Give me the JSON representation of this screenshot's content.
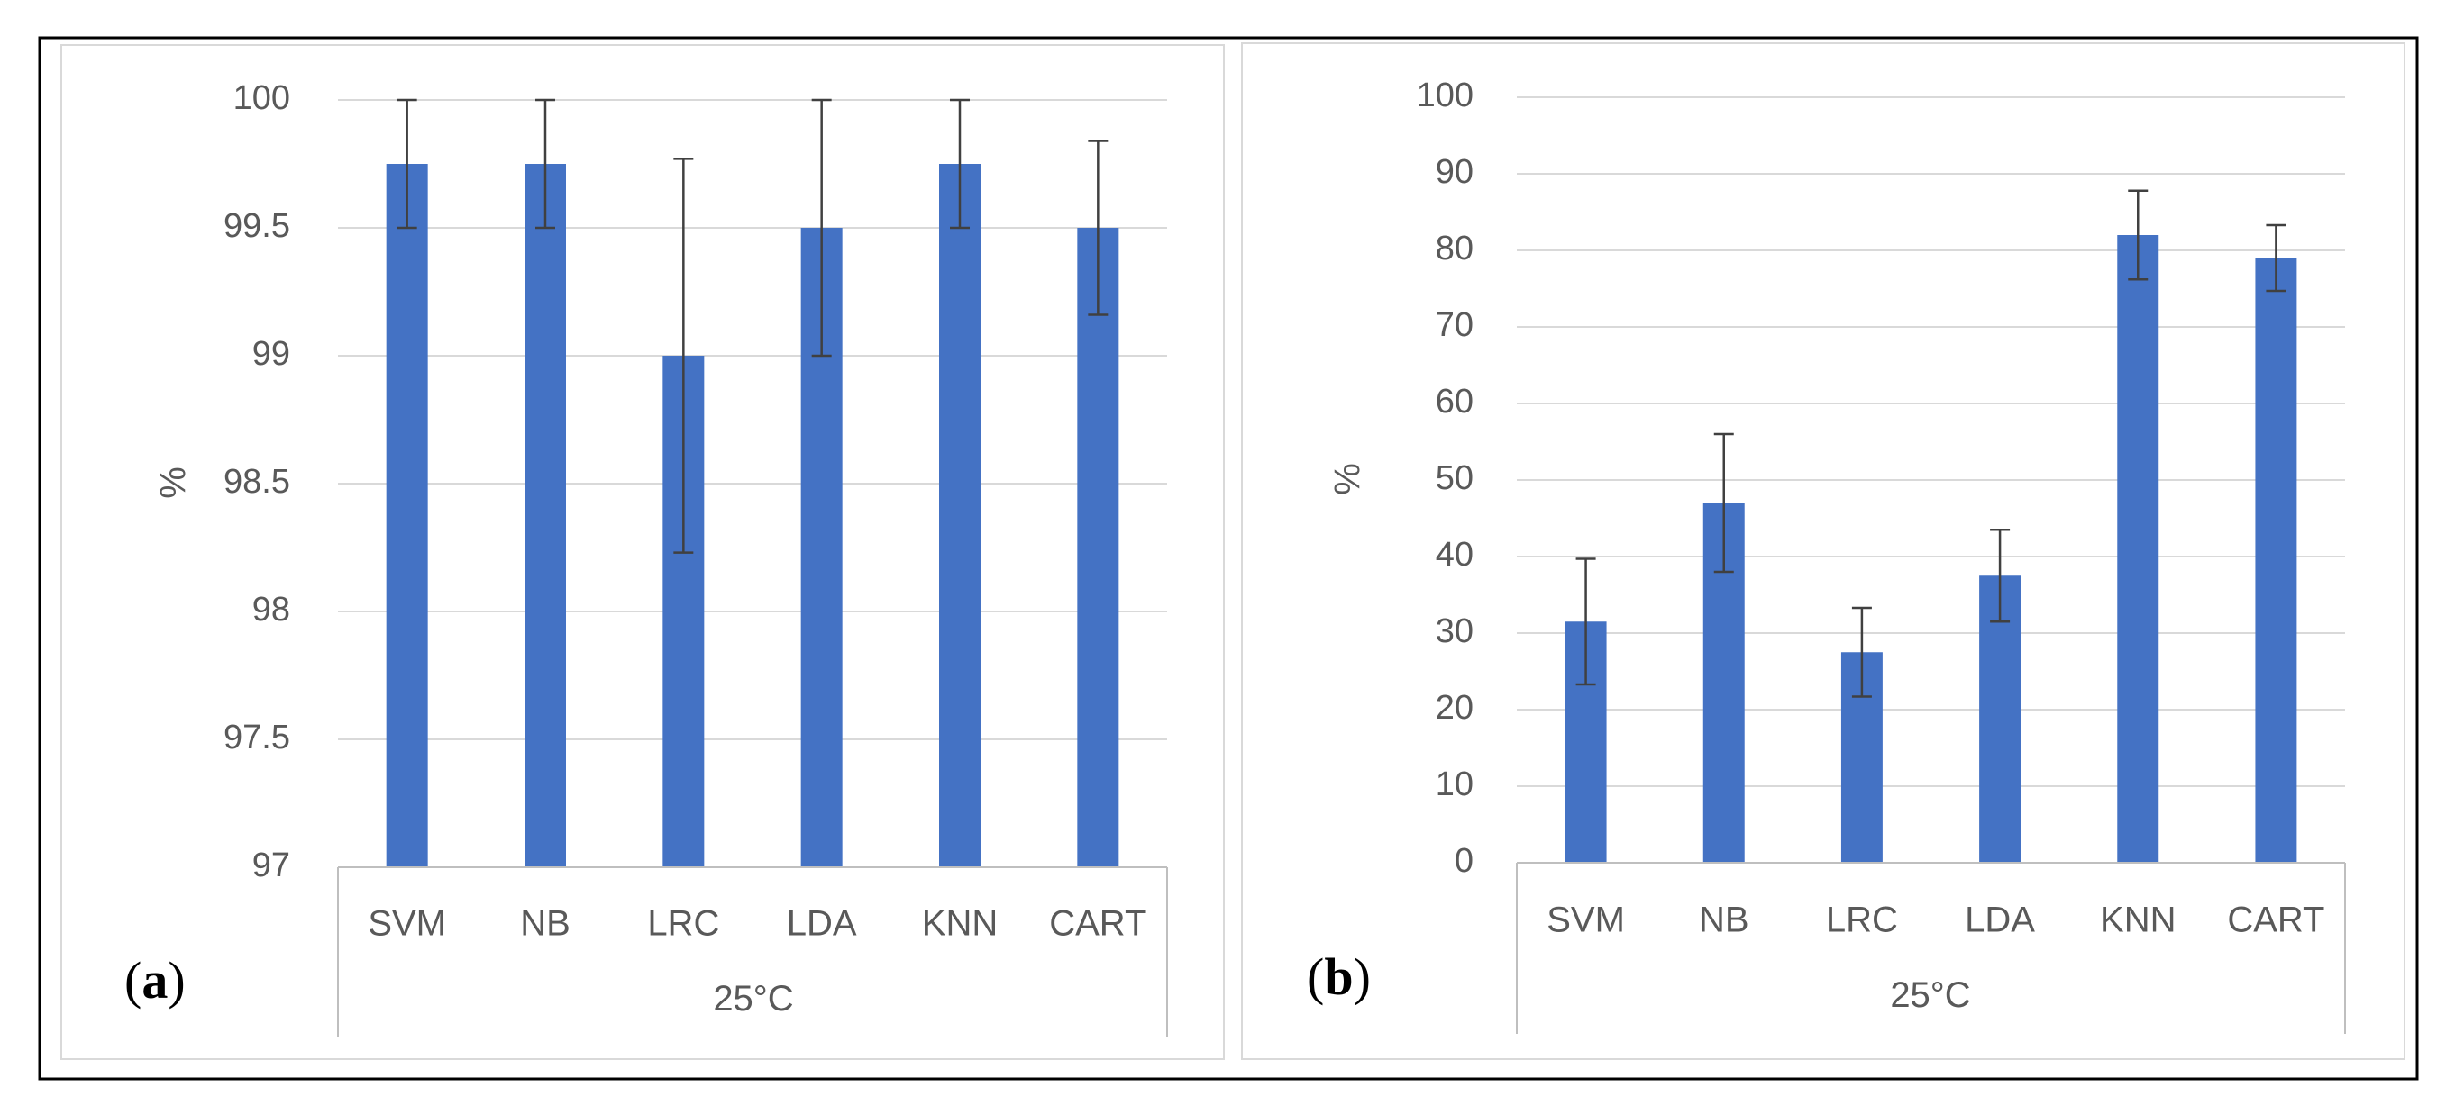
{
  "colors": {
    "bar": "#4472C4",
    "grid": "#d9d9d9",
    "axis": "#bfbfbf",
    "error": "#404040",
    "text": "#595959"
  },
  "chart_data": [
    {
      "panel": "a",
      "type": "bar",
      "title": "",
      "xlabel": "25°C",
      "ylabel": "%",
      "ylim": [
        97,
        100
      ],
      "yticks": [
        97,
        97.5,
        98,
        98.5,
        99,
        99.5,
        100
      ],
      "ytick_labels": [
        "97",
        "97.5",
        "98",
        "98.5",
        "99",
        "99.5",
        "100"
      ],
      "grid": true,
      "categories": [
        "SVM",
        "NB",
        "LRC",
        "LDA",
        "KNN",
        "CART"
      ],
      "values": [
        99.75,
        99.75,
        99.0,
        99.5,
        99.75,
        99.5
      ],
      "errors": [
        0.25,
        0.25,
        0.77,
        0.5,
        0.25,
        0.34
      ]
    },
    {
      "panel": "b",
      "type": "bar",
      "title": "",
      "xlabel": "25°C",
      "ylabel": "%",
      "ylim": [
        0,
        100
      ],
      "yticks": [
        0,
        10,
        20,
        30,
        40,
        50,
        60,
        70,
        80,
        90,
        100
      ],
      "ytick_labels": [
        "0",
        "10",
        "20",
        "30",
        "40",
        "50",
        "60",
        "70",
        "80",
        "90",
        "100"
      ],
      "grid": true,
      "categories": [
        "SVM",
        "NB",
        "LRC",
        "LDA",
        "KNN",
        "CART"
      ],
      "values": [
        31.5,
        47,
        27.5,
        37.5,
        82,
        79
      ],
      "errors": [
        8.2,
        9.0,
        5.8,
        6.0,
        5.8,
        4.3
      ]
    }
  ]
}
